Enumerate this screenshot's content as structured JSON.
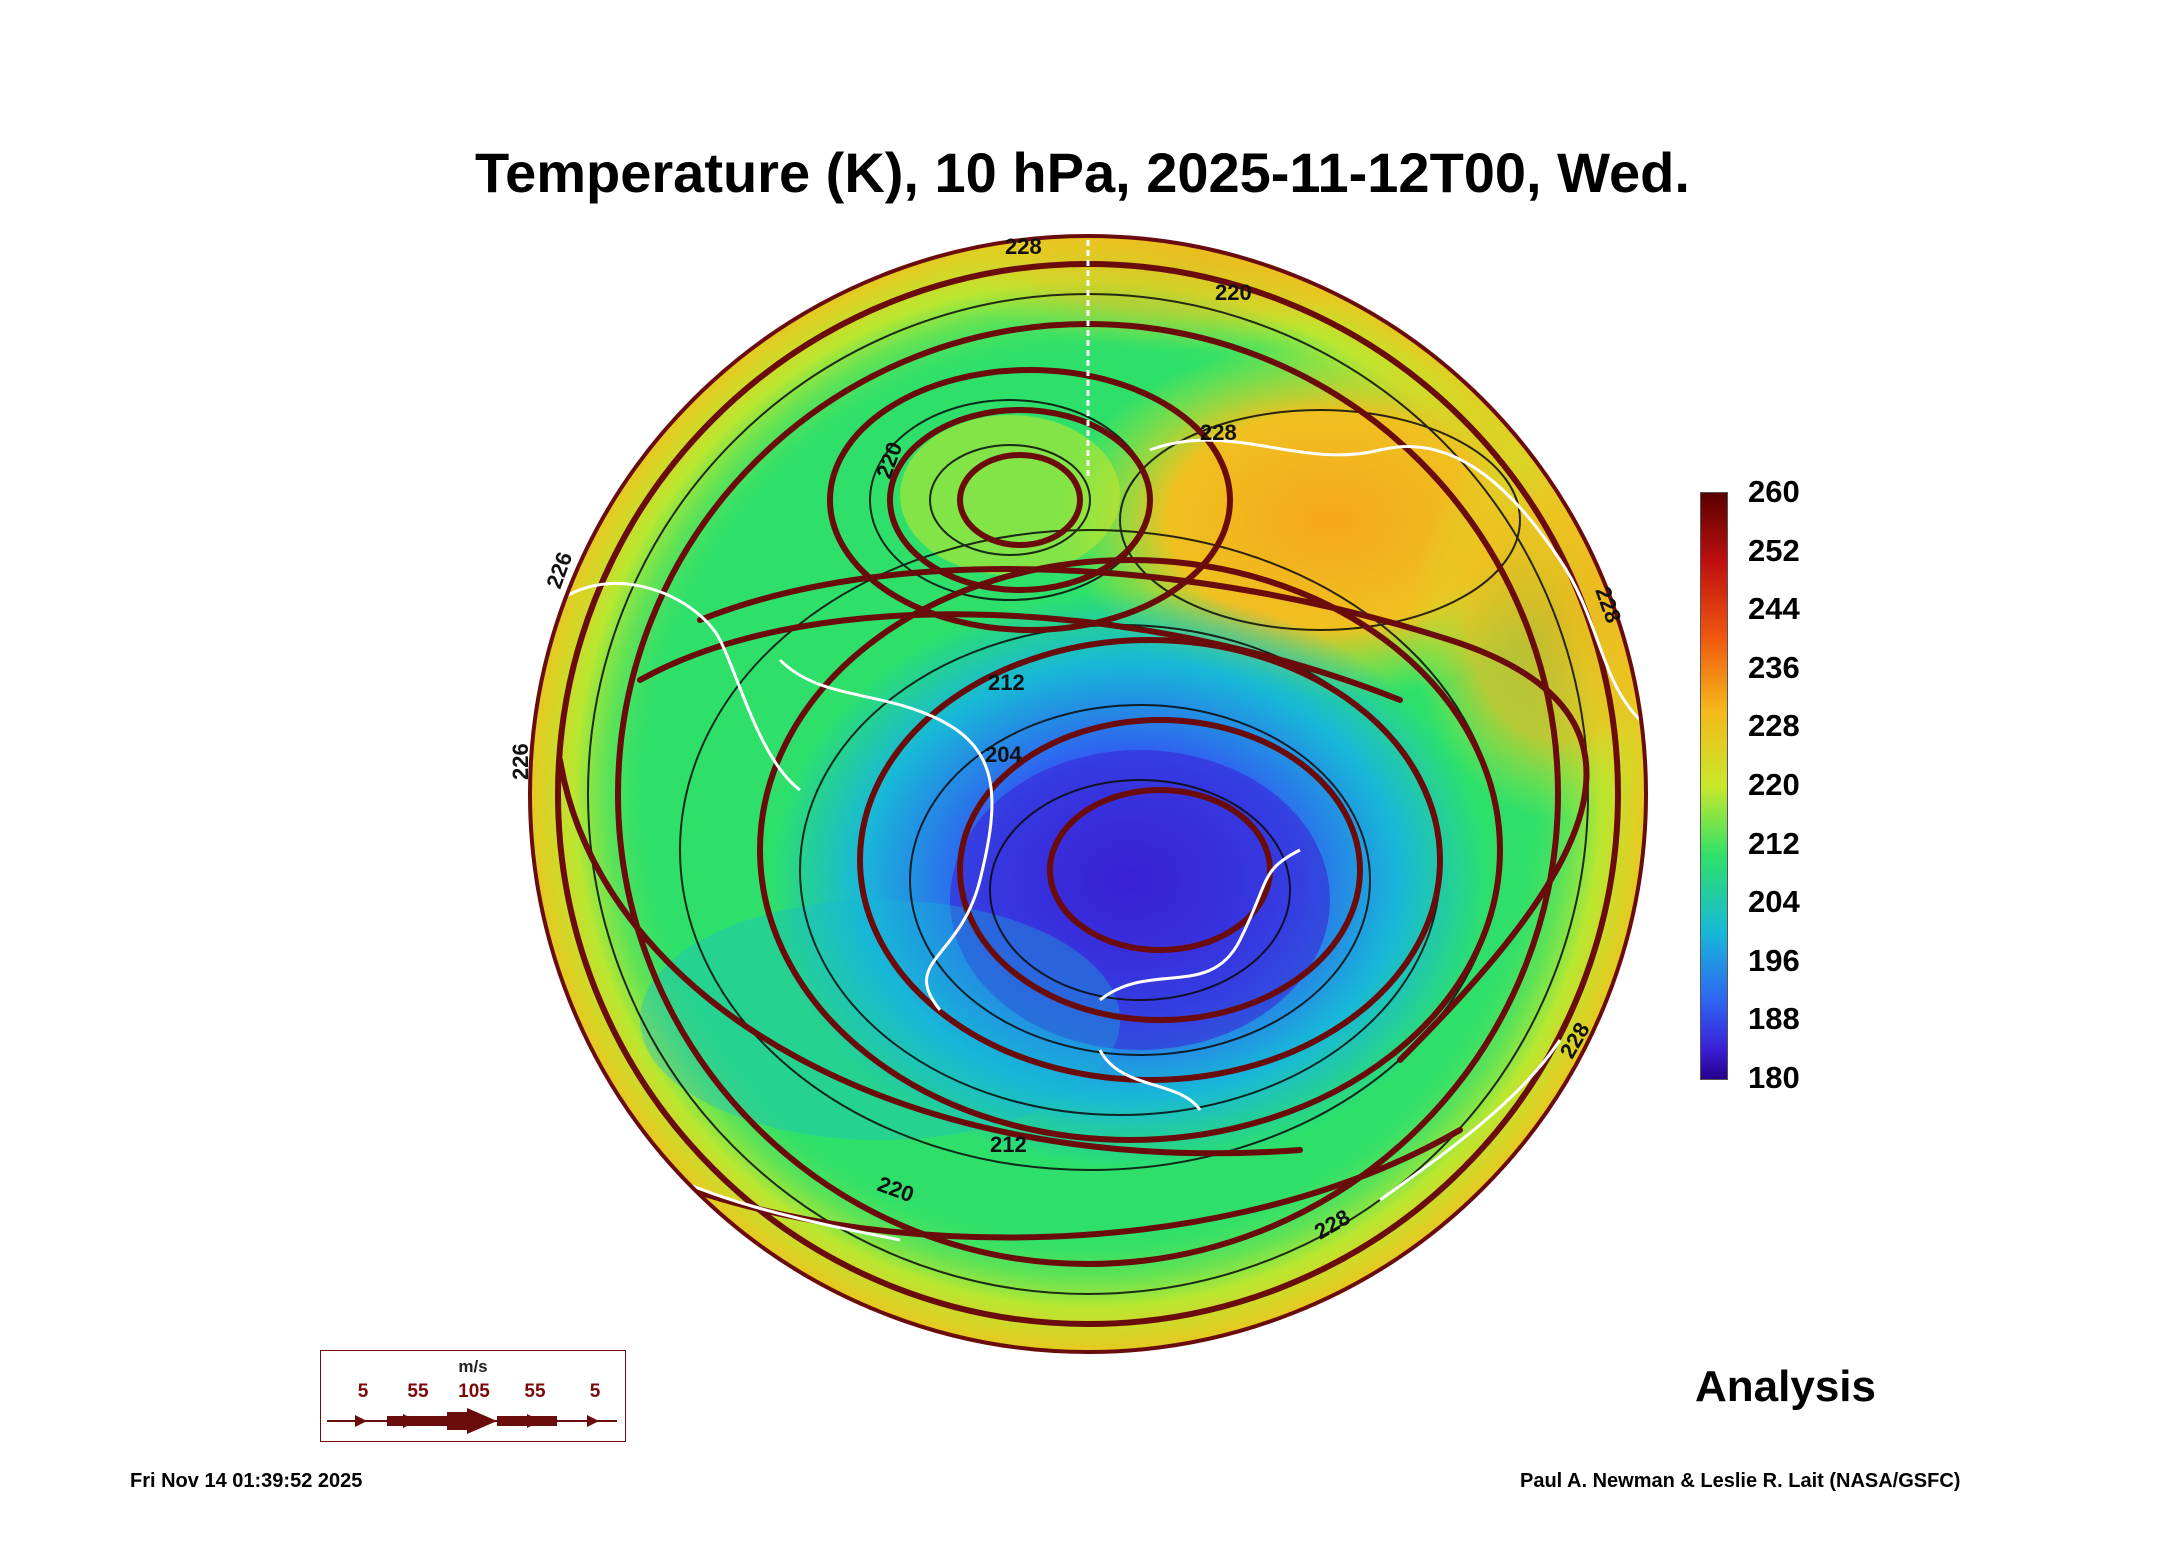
{
  "title": "Temperature (K), 10 hPa, 2025-11-12T00, Wed.",
  "map": {
    "projection": "north-polar-stereographic",
    "variable": "temperature",
    "level": "10 hPa",
    "contour_labels": [
      "228",
      "220",
      "228",
      "220",
      "212",
      "204",
      "212",
      "220",
      "228",
      "226",
      "226",
      "228",
      "228"
    ],
    "colors": {
      "coldest": "#3a1fd6",
      "cold": "#2f62f0",
      "cool": "#18b8d8",
      "mid": "#2ee06a",
      "warm": "#c8e82a",
      "hot": "#f5b81a",
      "streamline": "#6a0c0c",
      "coastline": "#ffffff",
      "contour": "#0a0a0a"
    }
  },
  "colorbar": {
    "min": 180,
    "max": 260,
    "ticks": [
      "260",
      "252",
      "244",
      "236",
      "228",
      "220",
      "212",
      "204",
      "196",
      "188",
      "180"
    ]
  },
  "label_analysis": "Analysis",
  "wind_legend": {
    "unit": "m/s",
    "values": [
      "5",
      "55",
      "105",
      "55",
      "5"
    ]
  },
  "footer": {
    "timestamp": "Fri Nov 14 01:39:52 2025",
    "credit": "Paul A. Newman & Leslie R. Lait (NASA/GSFC)"
  }
}
